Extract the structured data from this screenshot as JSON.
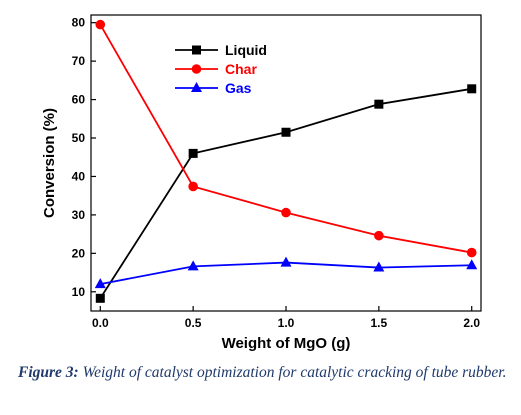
{
  "chart_data": {
    "type": "line",
    "x": [
      0.0,
      0.5,
      1.0,
      1.5,
      2.0
    ],
    "x_ticks": [
      "0.0",
      "0.5",
      "1.0",
      "1.5",
      "2.0"
    ],
    "y_ticks": [
      "10",
      "20",
      "30",
      "40",
      "50",
      "60",
      "70",
      "80"
    ],
    "xlabel": "Weight of MgO (g)",
    "ylabel": "Conversion (%)",
    "xlim": [
      -0.05,
      2.05
    ],
    "ylim": [
      5,
      82
    ],
    "grid": false,
    "legend_position": "top-center",
    "series": [
      {
        "name": "Liquid",
        "color": "#000000",
        "marker": "square",
        "values": [
          8.3,
          46.0,
          51.5,
          58.8,
          62.8
        ]
      },
      {
        "name": "Char",
        "color": "#ff0000",
        "marker": "circle",
        "values": [
          79.5,
          37.4,
          30.6,
          24.6,
          20.2
        ]
      },
      {
        "name": "Gas",
        "color": "#0000ff",
        "marker": "triangle",
        "values": [
          12.0,
          16.6,
          17.6,
          16.3,
          16.9
        ]
      }
    ]
  },
  "caption": {
    "label": "Figure 3:",
    "text": " Weight of catalyst optimization for catalytic cracking of tube rubber."
  }
}
